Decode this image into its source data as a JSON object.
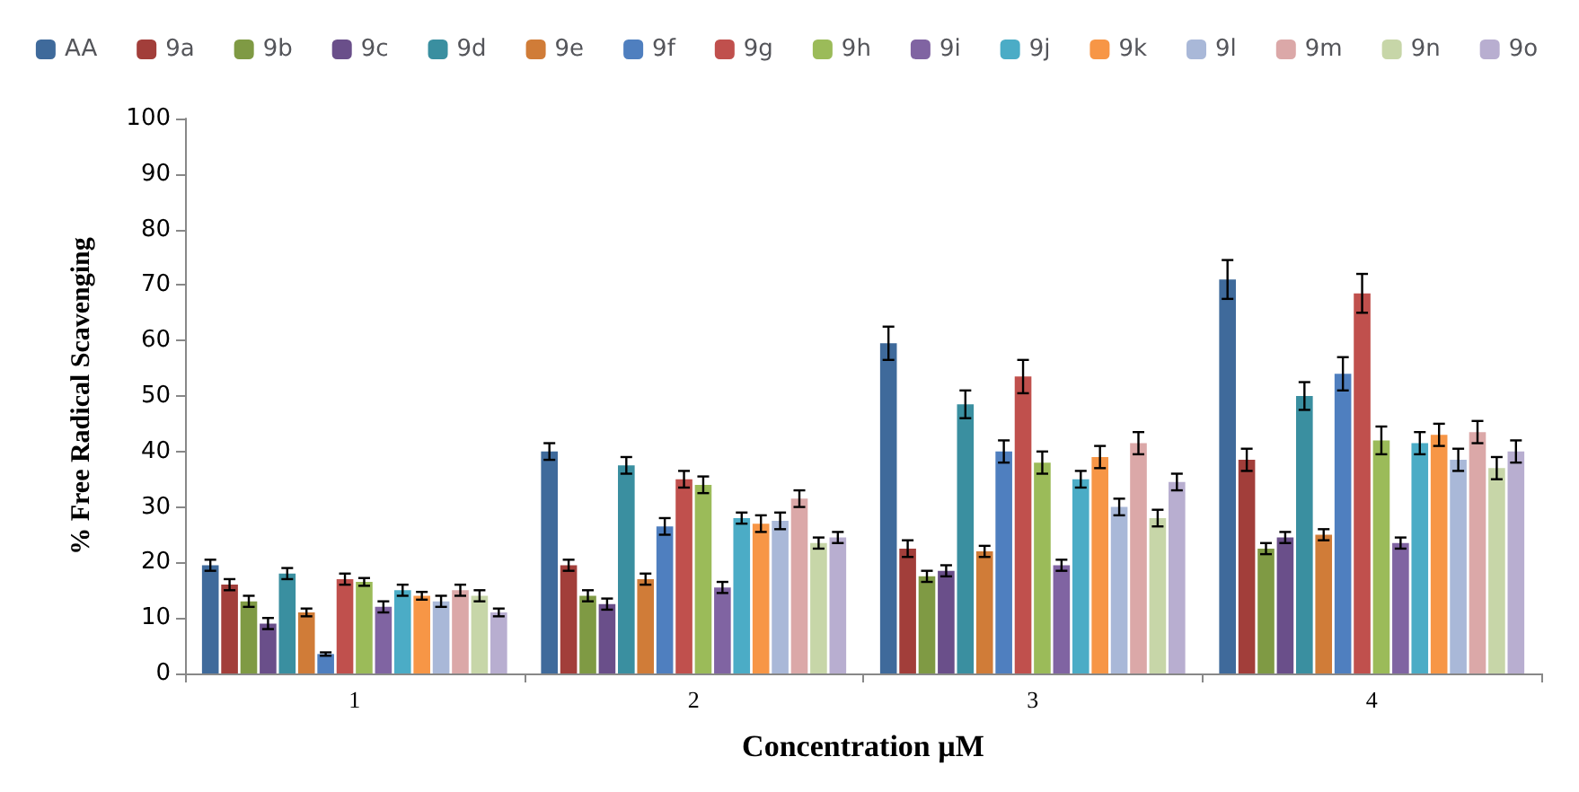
{
  "chart_data": {
    "type": "bar",
    "xlabel": "Concentration µM",
    "ylabel": "% Free Radical Scavenging",
    "categories": [
      "1",
      "2",
      "3",
      "4"
    ],
    "ylim": [
      0,
      100
    ],
    "yticks": [
      0,
      10,
      20,
      30,
      40,
      50,
      60,
      70,
      80,
      90,
      100
    ],
    "grid": false,
    "legend": "top",
    "series": [
      {
        "name": "AA",
        "color": "#3f6a9b",
        "values": [
          19.5,
          40,
          59.5,
          71
        ],
        "errors": [
          1,
          1.5,
          3,
          3.5
        ]
      },
      {
        "name": "9a",
        "color": "#a23e3a",
        "values": [
          16,
          19.5,
          22.5,
          38.5
        ],
        "errors": [
          1,
          1,
          1.5,
          2
        ]
      },
      {
        "name": "9b",
        "color": "#7f9a44",
        "values": [
          13,
          14,
          17.5,
          22.5
        ],
        "errors": [
          1,
          1,
          1,
          1
        ]
      },
      {
        "name": "9c",
        "color": "#6a4f8a",
        "values": [
          9,
          12.5,
          18.5,
          24.5
        ],
        "errors": [
          1,
          1,
          1,
          1
        ]
      },
      {
        "name": "9d",
        "color": "#3a8fa0",
        "values": [
          18,
          37.5,
          48.5,
          50
        ],
        "errors": [
          1,
          1.5,
          2.5,
          2.5
        ]
      },
      {
        "name": "9e",
        "color": "#d07c38",
        "values": [
          11,
          17,
          22,
          25
        ],
        "errors": [
          0.7,
          1,
          1,
          1
        ]
      },
      {
        "name": "9f",
        "color": "#4f7fbf",
        "values": [
          3.5,
          26.5,
          40,
          54
        ],
        "errors": [
          0.3,
          1.5,
          2,
          3
        ]
      },
      {
        "name": "9g",
        "color": "#c0504d",
        "values": [
          17,
          35,
          53.5,
          68.5
        ],
        "errors": [
          1,
          1.5,
          3,
          3.5
        ]
      },
      {
        "name": "9h",
        "color": "#9bbb59",
        "values": [
          16.5,
          34,
          38,
          42
        ],
        "errors": [
          0.7,
          1.5,
          2,
          2.5
        ]
      },
      {
        "name": "9i",
        "color": "#8064a2",
        "values": [
          12,
          15.5,
          19.5,
          23.5
        ],
        "errors": [
          1,
          1,
          1,
          1
        ]
      },
      {
        "name": "9j",
        "color": "#4bacc6",
        "values": [
          15,
          28,
          35,
          41.5
        ],
        "errors": [
          1,
          1,
          1.5,
          2
        ]
      },
      {
        "name": "9k",
        "color": "#f79646",
        "values": [
          14,
          27,
          39,
          43
        ],
        "errors": [
          0.7,
          1.5,
          2,
          2
        ]
      },
      {
        "name": "9l",
        "color": "#a9b8d8",
        "values": [
          13,
          27.5,
          30,
          38.5
        ],
        "errors": [
          1,
          1.5,
          1.5,
          2
        ]
      },
      {
        "name": "9m",
        "color": "#dba8a8",
        "values": [
          15,
          31.5,
          41.5,
          43.5
        ],
        "errors": [
          1,
          1.5,
          2,
          2
        ]
      },
      {
        "name": "9n",
        "color": "#c7d6a8",
        "values": [
          14,
          23.5,
          28,
          37
        ],
        "errors": [
          1,
          1,
          1.5,
          2
        ]
      },
      {
        "name": "9o",
        "color": "#b8aed0",
        "values": [
          11,
          24.5,
          34.5,
          40
        ],
        "errors": [
          0.7,
          1,
          1.5,
          2
        ]
      }
    ]
  }
}
